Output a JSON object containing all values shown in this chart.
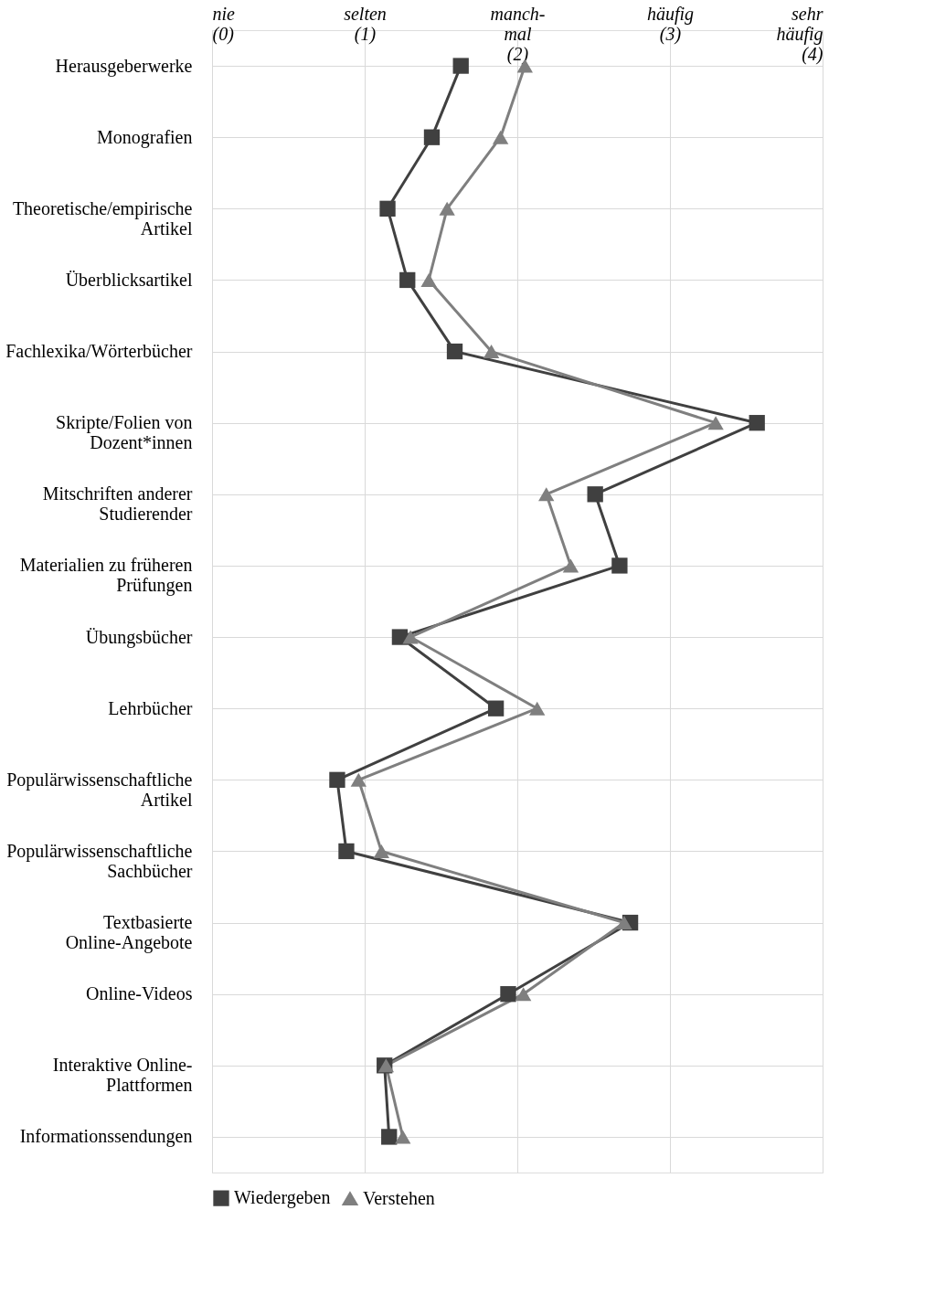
{
  "chart_data": {
    "type": "line",
    "orientation": "horizontal",
    "categories": [
      "Herausgeberwerke",
      "Monografien",
      "Theoretische/empirische\nArtikel",
      "Überblicksartikel",
      "Fachlexika/Wörterbücher",
      "Skripte/Folien von\nDozent*innen",
      "Mitschriften anderer\nStudierender",
      "Materialien zu früheren\nPrüfungen",
      "Übungsbücher",
      "Lehrbücher",
      "Populärwissenschaftliche\nArtikel",
      "Populärwissenschaftliche\nSachbücher",
      "Textbasierte\nOnline-Angebote",
      "Online-Videos",
      "Interaktive Online-\nPlattformen",
      "Informationssendungen"
    ],
    "series": [
      {
        "name": "Wiedergeben",
        "color": "#404040",
        "marker": "square",
        "values": [
          1.63,
          1.44,
          1.15,
          1.28,
          1.59,
          3.57,
          2.51,
          2.67,
          1.23,
          1.86,
          0.82,
          0.88,
          2.74,
          1.94,
          1.13,
          1.16
        ]
      },
      {
        "name": "Verstehen",
        "color": "#7f7f7f",
        "marker": "triangle",
        "values": [
          2.05,
          1.89,
          1.54,
          1.42,
          1.83,
          3.3,
          2.19,
          2.35,
          1.3,
          2.13,
          0.96,
          1.11,
          2.7,
          2.04,
          1.14,
          1.25
        ]
      }
    ],
    "xlim": [
      0,
      4
    ],
    "xticks": [
      {
        "value": 0,
        "label": "nie\n(0)"
      },
      {
        "value": 1,
        "label": "selten\n(1)"
      },
      {
        "value": 2,
        "label": "manch-\nmal\n(2)"
      },
      {
        "value": 3,
        "label": "häufig\n(3)"
      },
      {
        "value": 4,
        "label": "sehr\nhäufig\n(4)"
      }
    ],
    "grid": true,
    "legend": "bottom"
  }
}
